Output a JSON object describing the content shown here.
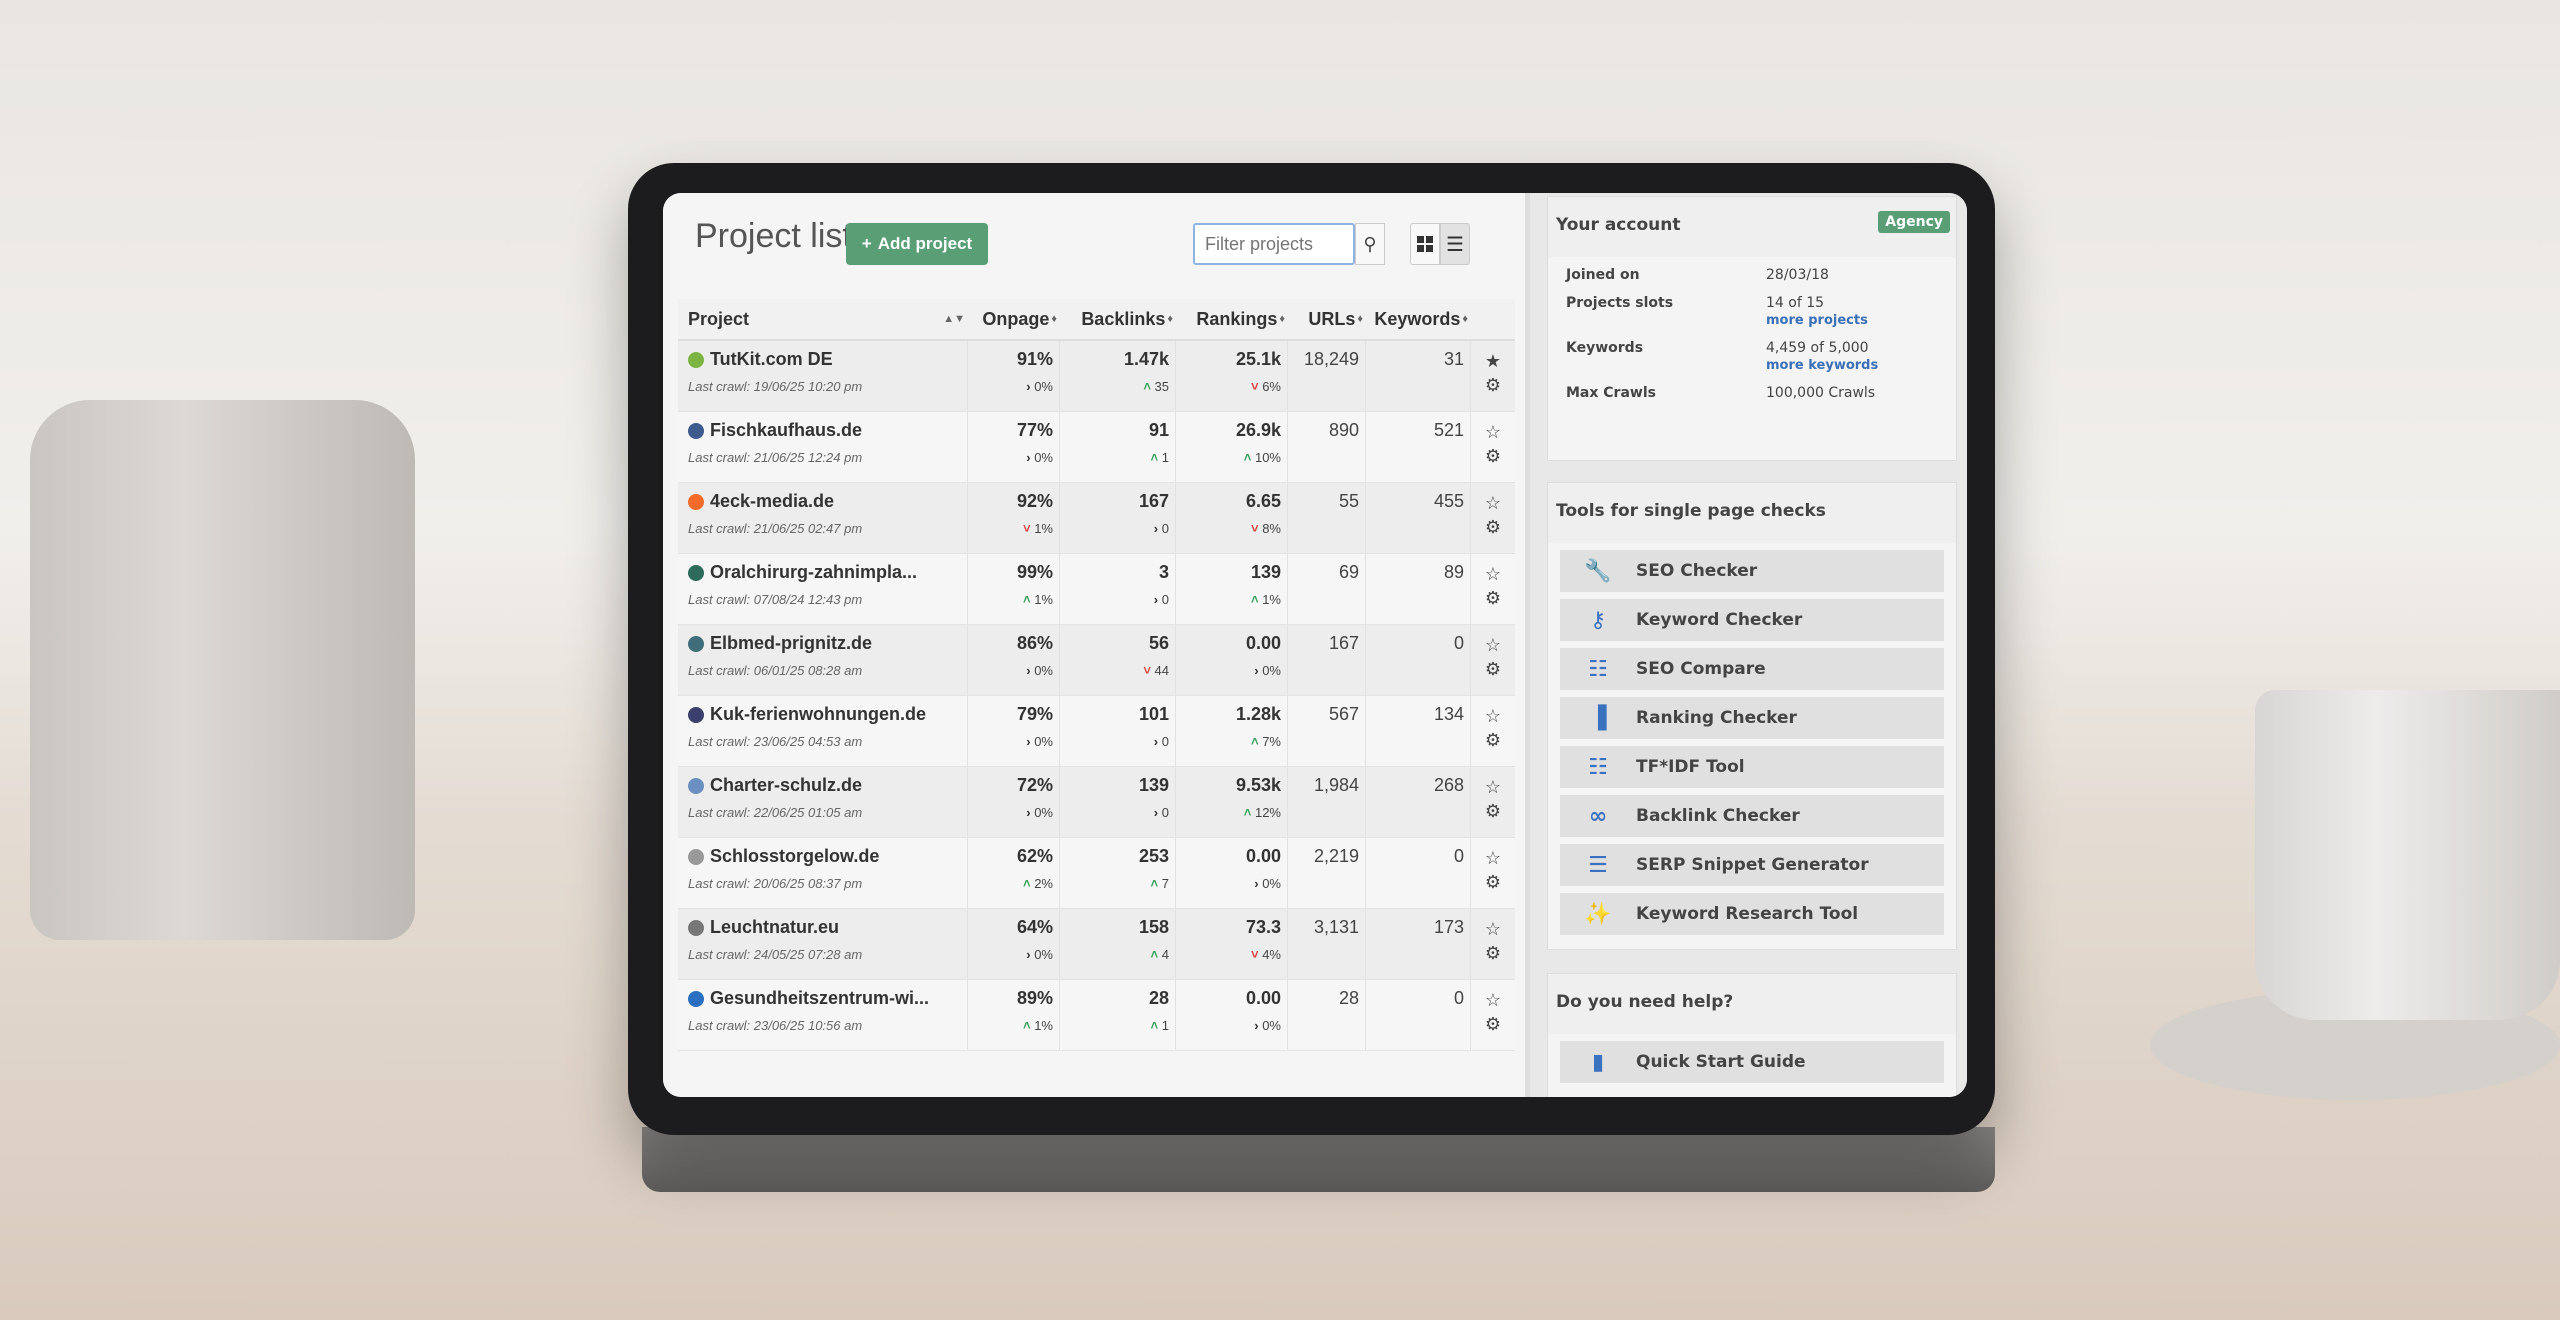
{
  "header": {
    "title": "Project list",
    "add_label": "Add project",
    "filter_placeholder": "Filter projects"
  },
  "columns": [
    "Project",
    "Onpage",
    "Backlinks",
    "Rankings",
    "URLs",
    "Keywords"
  ],
  "projects": [
    {
      "name": "TutKit.com DE",
      "crawl": "Last crawl: 19/06/25 10:20 pm",
      "onpage": "91%",
      "onpage_trend": "0%",
      "onpage_dir": "flat",
      "backlinks": "1.47k",
      "backlinks_trend": "35",
      "backlinks_dir": "up",
      "rankings": "25.1k",
      "rankings_trend": "6%",
      "rankings_dir": "down",
      "urls": "18,249",
      "keywords": "31",
      "favorite": true,
      "color": "#7cb342"
    },
    {
      "name": "Fischkaufhaus.de",
      "crawl": "Last crawl: 21/06/25 12:24 pm",
      "onpage": "77%",
      "onpage_trend": "0%",
      "onpage_dir": "flat",
      "backlinks": "91",
      "backlinks_trend": "1",
      "backlinks_dir": "up",
      "rankings": "26.9k",
      "rankings_trend": "10%",
      "rankings_dir": "up",
      "urls": "890",
      "keywords": "521",
      "favorite": false,
      "color": "#3c5a8c"
    },
    {
      "name": "4eck-media.de",
      "crawl": "Last crawl: 21/06/25 02:47 pm",
      "onpage": "92%",
      "onpage_trend": "1%",
      "onpage_dir": "down",
      "backlinks": "167",
      "backlinks_trend": "0",
      "backlinks_dir": "flat",
      "rankings": "6.65",
      "rankings_trend": "8%",
      "rankings_dir": "down",
      "urls": "55",
      "keywords": "455",
      "favorite": false,
      "color": "#f26b2a"
    },
    {
      "name": "Oralchirurg-zahnimpla...",
      "crawl": "Last crawl: 07/08/24 12:43 pm",
      "onpage": "99%",
      "onpage_trend": "1%",
      "onpage_dir": "up",
      "backlinks": "3",
      "backlinks_trend": "0",
      "backlinks_dir": "flat",
      "rankings": "139",
      "rankings_trend": "1%",
      "rankings_dir": "up",
      "urls": "69",
      "keywords": "89",
      "favorite": false,
      "color": "#2e6b5a"
    },
    {
      "name": "Elbmed-prignitz.de",
      "crawl": "Last crawl: 06/01/25 08:28 am",
      "onpage": "86%",
      "onpage_trend": "0%",
      "onpage_dir": "flat",
      "backlinks": "56",
      "backlinks_trend": "44",
      "backlinks_dir": "down",
      "rankings": "0.00",
      "rankings_trend": "0%",
      "rankings_dir": "flat",
      "urls": "167",
      "keywords": "0",
      "favorite": false,
      "color": "#3f6e7a"
    },
    {
      "name": "Kuk-ferienwohnungen.de",
      "crawl": "Last crawl: 23/06/25 04:53 am",
      "onpage": "79%",
      "onpage_trend": "0%",
      "onpage_dir": "flat",
      "backlinks": "101",
      "backlinks_trend": "0",
      "backlinks_dir": "flat",
      "rankings": "1.28k",
      "rankings_trend": "7%",
      "rankings_dir": "up",
      "urls": "567",
      "keywords": "134",
      "favorite": false,
      "color": "#3a3f6b"
    },
    {
      "name": "Charter-schulz.de",
      "crawl": "Last crawl: 22/06/25 01:05 am",
      "onpage": "72%",
      "onpage_trend": "0%",
      "onpage_dir": "flat",
      "backlinks": "139",
      "backlinks_trend": "0",
      "backlinks_dir": "flat",
      "rankings": "9.53k",
      "rankings_trend": "12%",
      "rankings_dir": "up",
      "urls": "1,984",
      "keywords": "268",
      "favorite": false,
      "color": "#6a8fc0"
    },
    {
      "name": "Schlosstorgelow.de",
      "crawl": "Last crawl: 20/06/25 08:37 pm",
      "onpage": "62%",
      "onpage_trend": "2%",
      "onpage_dir": "up",
      "backlinks": "253",
      "backlinks_trend": "7",
      "backlinks_dir": "up",
      "rankings": "0.00",
      "rankings_trend": "0%",
      "rankings_dir": "flat",
      "urls": "2,219",
      "keywords": "0",
      "favorite": false,
      "color": "#999999"
    },
    {
      "name": "Leuchtnatur.eu",
      "crawl": "Last crawl: 24/05/25 07:28 am",
      "onpage": "64%",
      "onpage_trend": "0%",
      "onpage_dir": "flat",
      "backlinks": "158",
      "backlinks_trend": "4",
      "backlinks_dir": "up",
      "rankings": "73.3",
      "rankings_trend": "4%",
      "rankings_dir": "down",
      "urls": "3,131",
      "keywords": "173",
      "favorite": false,
      "color": "#777777"
    },
    {
      "name": "Gesundheitszentrum-wi...",
      "crawl": "Last crawl: 23/06/25 10:56 am",
      "onpage": "89%",
      "onpage_trend": "1%",
      "onpage_dir": "up",
      "backlinks": "28",
      "backlinks_trend": "1",
      "backlinks_dir": "up",
      "rankings": "0.00",
      "rankings_trend": "0%",
      "rankings_dir": "flat",
      "urls": "28",
      "keywords": "0",
      "favorite": false,
      "color": "#2a6fc0"
    }
  ],
  "account": {
    "title": "Your account",
    "badge": "Agency",
    "rows": [
      {
        "label": "Joined on",
        "value": "28/03/18"
      },
      {
        "label": "Projects slots",
        "value": "14 of 15",
        "link": "more projects"
      },
      {
        "label": "Keywords",
        "value": "4,459 of 5,000",
        "link": "more keywords"
      },
      {
        "label": "Max Crawls",
        "value": "100,000 Crawls"
      }
    ]
  },
  "tools": {
    "title": "Tools for single page checks",
    "items": [
      {
        "label": "SEO Checker",
        "icon": "wrench-icon"
      },
      {
        "label": "Keyword Checker",
        "icon": "keys-icon"
      },
      {
        "label": "SEO Compare",
        "icon": "compare-icon"
      },
      {
        "label": "Ranking Checker",
        "icon": "signal-bars-icon"
      },
      {
        "label": "TF*IDF Tool",
        "icon": "equalizer-icon"
      },
      {
        "label": "Backlink Checker",
        "icon": "link-icon"
      },
      {
        "label": "SERP Snippet Generator",
        "icon": "list-box-icon"
      },
      {
        "label": "Keyword Research Tool",
        "icon": "magic-wand-icon"
      }
    ]
  },
  "help": {
    "title": "Do you need help?",
    "items": [
      {
        "label": "Quick Start Guide",
        "icon": "book-icon"
      }
    ]
  },
  "colors": {
    "accent_green": "#5a9e76",
    "link_blue": "#3b6fb6",
    "up": "#3aa35c",
    "down": "#d9453d",
    "icon_blue": "#3b72c0"
  }
}
